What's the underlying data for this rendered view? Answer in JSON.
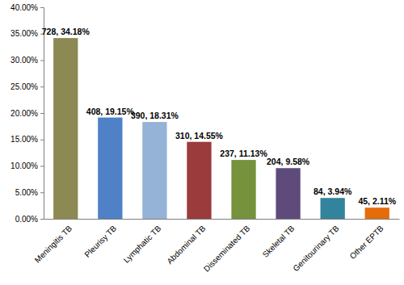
{
  "chart_data": {
    "type": "bar",
    "categories": [
      "Meningitis TB",
      "Pleurisy TB",
      "Lymphatic TB",
      "Abdominal TB",
      "Disseminated TB",
      "Skeletal TB",
      "Genitourinary TB",
      "Other EPTB"
    ],
    "values": [
      34.18,
      19.15,
      18.31,
      14.55,
      11.13,
      9.58,
      3.94,
      2.11
    ],
    "value_labels": [
      "728, 34.18%",
      "408, 19.15%",
      "390, 18.31%",
      "310, 14.55%",
      "237, 11.13%",
      "204, 9.58%",
      "84, 3.94%",
      "45, 2.11%"
    ],
    "colors": [
      "#8c8a52",
      "#4f81c7",
      "#95b3d7",
      "#9b3b3b",
      "#76923c",
      "#5f4b7b",
      "#31849b",
      "#e46c0a"
    ],
    "ylim": [
      0,
      40
    ],
    "yticks": [
      {
        "value": 0,
        "label": "0.00%"
      },
      {
        "value": 5,
        "label": "5.00%"
      },
      {
        "value": 10,
        "label": "10.00%"
      },
      {
        "value": 15,
        "label": "15.00%"
      },
      {
        "value": 20,
        "label": "20.00%"
      },
      {
        "value": 25,
        "label": "25.00%"
      },
      {
        "value": 30,
        "label": "30.00%"
      },
      {
        "value": 35,
        "label": "35.00%"
      },
      {
        "value": 40,
        "label": "40.00%"
      }
    ],
    "grid": false,
    "data_labels": true
  }
}
